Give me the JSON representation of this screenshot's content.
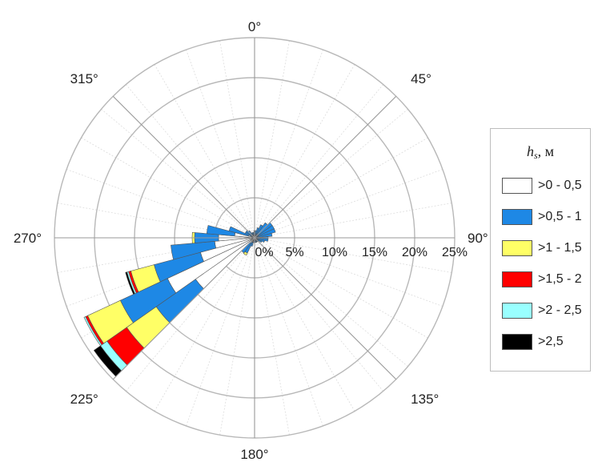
{
  "chart_data": {
    "type": "polar-stacked-bar",
    "directions": [
      "0°",
      "45°",
      "90°",
      "135°",
      "180°",
      "225°",
      "270°",
      "315°"
    ],
    "radial_ticks": [
      "0%",
      "5%",
      "10%",
      "15%",
      "20%",
      "25%"
    ],
    "radial_max": 25,
    "sector_angles_deg": [
      0,
      10,
      20,
      30,
      40,
      50,
      60,
      70,
      80,
      90,
      100,
      110,
      120,
      130,
      140,
      150,
      160,
      170,
      180,
      190,
      200,
      210,
      220,
      230,
      240,
      250,
      260,
      270,
      280,
      290,
      300,
      310,
      320,
      330,
      340,
      350
    ],
    "legend_title": {
      "main": "h",
      "sub": "s",
      "unit": ", м"
    },
    "series": [
      {
        "name": ">0 - 0,5",
        "color": "#ffffff",
        "values": [
          0.3,
          0.3,
          0.3,
          0.3,
          0.3,
          0.2,
          0.2,
          0.2,
          0.2,
          0.2,
          0.2,
          0.3,
          0.3,
          0.3,
          0.3,
          0.3,
          0.3,
          0.3,
          0.3,
          0.3,
          0.6,
          0.6,
          0.8,
          9.0,
          12.0,
          7.0,
          5.0,
          4.5,
          2.5,
          0.8,
          0.3,
          0.3,
          0.3,
          0.3,
          0.3,
          0.3
        ]
      },
      {
        "name": ">0,5 - 1",
        "color": "#1e88e5",
        "values": [
          0.6,
          0.6,
          1.0,
          1.5,
          2.0,
          2.5,
          2.5,
          2.5,
          2.0,
          1.5,
          1.5,
          1.0,
          0.7,
          0.4,
          0.3,
          0.3,
          0.3,
          0.3,
          0.3,
          0.3,
          0.5,
          1.5,
          1.5,
          6.0,
          6.5,
          6.0,
          5.5,
          3.0,
          3.5,
          2.5,
          1.0,
          1.0,
          0.8,
          0.4,
          0.4,
          0.4
        ]
      },
      {
        "name": ">1 - 1,5",
        "color": "#ffff66",
        "values": [
          0,
          0,
          0,
          0,
          0,
          0,
          0,
          0,
          0,
          0,
          0,
          0,
          0,
          0,
          0,
          0,
          0,
          0,
          0,
          0,
          0,
          0.3,
          0,
          4.5,
          4.5,
          3.0,
          0,
          0.3,
          0,
          0,
          0,
          0,
          0,
          0,
          0,
          0
        ]
      },
      {
        "name": ">1,5 - 2",
        "color": "#ff0000",
        "values": [
          0,
          0,
          0,
          0,
          0,
          0,
          0,
          0,
          0,
          0,
          0,
          0,
          0,
          0,
          0,
          0,
          0,
          0,
          0,
          0,
          0,
          0,
          0,
          3.0,
          0.3,
          0.3,
          0,
          0,
          0,
          0,
          0,
          0,
          0,
          0,
          0,
          0
        ]
      },
      {
        "name": ">2 - 2,5",
        "color": "#99ffff",
        "values": [
          0,
          0,
          0,
          0,
          0,
          0,
          0,
          0,
          0,
          0,
          0,
          0,
          0,
          0,
          0,
          0,
          0,
          0,
          0,
          0,
          0,
          0,
          0,
          1.0,
          0.2,
          0.2,
          0,
          0,
          0,
          0,
          0,
          0,
          0,
          0,
          0,
          0
        ]
      },
      {
        "name": ">2,5",
        "color": "#000000",
        "values": [
          0,
          0,
          0,
          0,
          0,
          0,
          0,
          0,
          0,
          0,
          0,
          0,
          0,
          0,
          0,
          0,
          0,
          0,
          0,
          0,
          0,
          0,
          0,
          1.0,
          0,
          0.2,
          0,
          0,
          0,
          0,
          0,
          0,
          0,
          0,
          0,
          0
        ]
      }
    ]
  }
}
